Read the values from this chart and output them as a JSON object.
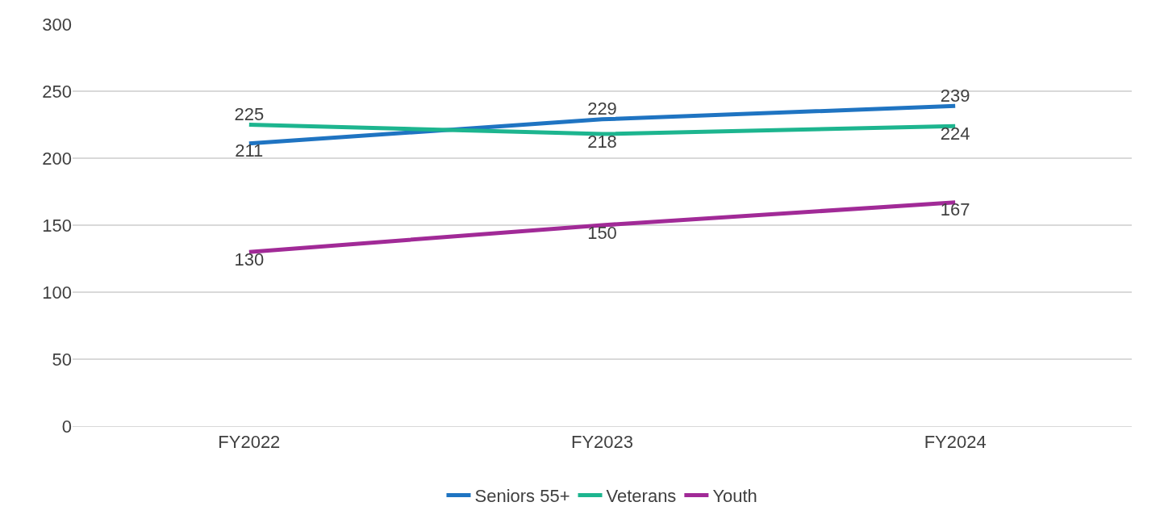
{
  "chart_data": {
    "type": "line",
    "categories": [
      "FY2022",
      "FY2023",
      "FY2024"
    ],
    "series": [
      {
        "name": "Seniors 55+",
        "color": "#1f74c2",
        "values": [
          211,
          229,
          239
        ]
      },
      {
        "name": "Veterans",
        "color": "#1db58f",
        "values": [
          225,
          218,
          224
        ]
      },
      {
        "name": "Youth",
        "color": "#a12a97",
        "values": [
          130,
          150,
          167
        ]
      }
    ],
    "ylim": [
      0,
      300
    ],
    "yticks": [
      0,
      50,
      100,
      150,
      200,
      250,
      300
    ],
    "grid": "y",
    "legend": "bottom",
    "data_labels": true,
    "marker": "none",
    "line_style": "solid"
  }
}
